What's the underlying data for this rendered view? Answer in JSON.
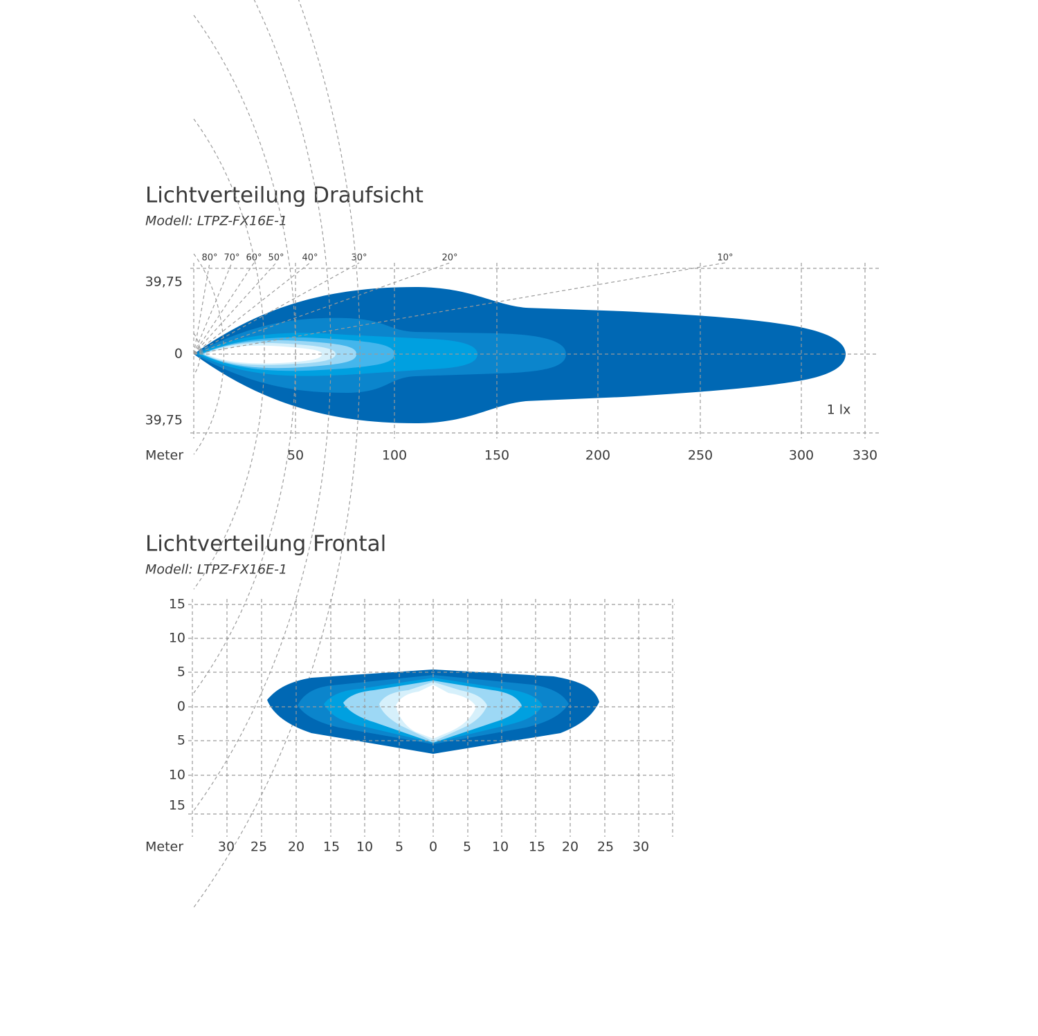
{
  "top": {
    "title": "Lichtverteilung Draufsicht",
    "subtitle": "Modell: LTPZ-FX16E-1",
    "angle_labels": [
      "80°",
      "70°",
      "60°",
      "50°",
      "40°",
      "30°",
      "20°",
      "10°"
    ],
    "y_labels": [
      "39,75",
      "0",
      "39,75"
    ],
    "x_axis_label": "Meter",
    "x_labels": [
      "50",
      "100",
      "150",
      "200",
      "250",
      "300",
      "330"
    ],
    "annotation": "1 lx"
  },
  "front": {
    "title": "Lichtverteilung Frontal",
    "subtitle": "Modell: LTPZ-FX16E-1",
    "y_labels": [
      "15",
      "10",
      "5",
      "0",
      "5",
      "10",
      "15"
    ],
    "x_axis_label": "Meter",
    "x_labels": [
      "30",
      "25",
      "20",
      "15",
      "10",
      "5",
      "0",
      "5",
      "10",
      "15",
      "20",
      "25",
      "30"
    ]
  }
}
